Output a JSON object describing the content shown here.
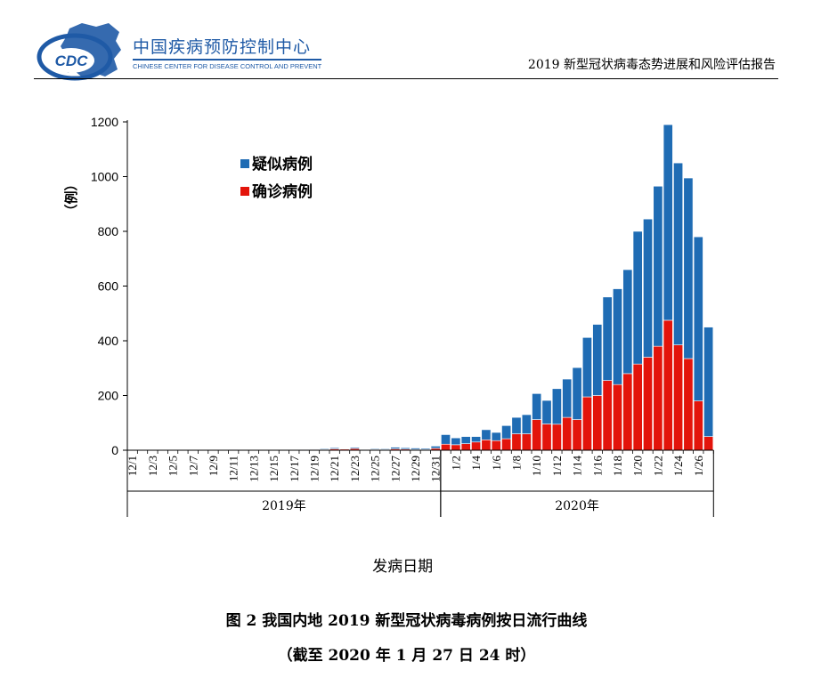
{
  "header": {
    "logo_text": "CDC",
    "org_name_cn": "中国疾病预防控制中心",
    "org_name_en": "CHINESE CENTER FOR DISEASE CONTROL AND PREVENTION",
    "report_title": "2019 新型冠状病毒态势进展和风险评估报告",
    "brand_color": "#1f5aa6"
  },
  "chart_data": {
    "type": "bar",
    "stacked": true,
    "ylabel": "（例）",
    "xlabel": "发病日期",
    "ylim": [
      0,
      1200
    ],
    "yticks": [
      0,
      200,
      400,
      600,
      800,
      1000,
      1200
    ],
    "grid": false,
    "legend_position": "top-left",
    "categories": [
      "12/1",
      "12/2",
      "12/3",
      "12/4",
      "12/5",
      "12/6",
      "12/7",
      "12/8",
      "12/9",
      "12/10",
      "12/11",
      "12/12",
      "12/13",
      "12/14",
      "12/15",
      "12/16",
      "12/17",
      "12/18",
      "12/19",
      "12/20",
      "12/21",
      "12/22",
      "12/23",
      "12/24",
      "12/25",
      "12/26",
      "12/27",
      "12/28",
      "12/29",
      "12/30",
      "12/31",
      "1/1",
      "1/2",
      "1/3",
      "1/4",
      "1/5",
      "1/6",
      "1/7",
      "1/8",
      "1/9",
      "1/10",
      "1/11",
      "1/12",
      "1/13",
      "1/14",
      "1/15",
      "1/16",
      "1/17",
      "1/18",
      "1/19",
      "1/20",
      "1/21",
      "1/22",
      "1/23",
      "1/24",
      "1/25",
      "1/26",
      "1/27"
    ],
    "tick_labels": [
      "12/1",
      "12/3",
      "12/5",
      "12/7",
      "12/9",
      "12/11",
      "12/13",
      "12/15",
      "12/17",
      "12/19",
      "12/21",
      "12/23",
      "12/25",
      "12/27",
      "12/29",
      "12/31",
      "1/2",
      "1/4",
      "1/6",
      "1/8",
      "1/10",
      "1/12",
      "1/14",
      "1/16",
      "1/18",
      "1/20",
      "1/22",
      "1/24",
      "1/26"
    ],
    "year_groups": [
      {
        "label": "2019年",
        "from": "12/1",
        "to": "12/31"
      },
      {
        "label": "2020年",
        "from": "1/1",
        "to": "1/27"
      }
    ],
    "series": [
      {
        "name": "确诊病例",
        "color": "#e3140b",
        "values": [
          1,
          0,
          0,
          0,
          0,
          0,
          1,
          0,
          0,
          1,
          1,
          0,
          1,
          0,
          0,
          1,
          1,
          1,
          3,
          3,
          5,
          4,
          6,
          2,
          3,
          2,
          5,
          4,
          3,
          3,
          7,
          22,
          20,
          24,
          30,
          38,
          35,
          42,
          60,
          60,
          112,
          96,
          95,
          120,
          112,
          195,
          200,
          255,
          240,
          280,
          315,
          340,
          380,
          475,
          385,
          335,
          180,
          50
        ]
      },
      {
        "name": "疑似病例",
        "color": "#1f6cb4",
        "values": [
          0,
          0,
          0,
          0,
          0,
          0,
          0,
          0,
          0,
          0,
          1,
          0,
          0,
          0,
          0,
          0,
          0,
          1,
          2,
          3,
          4,
          2,
          4,
          2,
          3,
          3,
          6,
          5,
          5,
          4,
          8,
          35,
          25,
          26,
          20,
          37,
          30,
          48,
          60,
          70,
          95,
          86,
          130,
          140,
          190,
          217,
          260,
          305,
          350,
          380,
          485,
          505,
          585,
          715,
          665,
          660,
          600,
          400
        ]
      }
    ]
  },
  "captions": {
    "figure_title": "图 2  我国内地 2019 新型冠状病毒病例按日流行曲线",
    "figure_note": "（截至 2020 年 1 月 27 日 24 时）"
  }
}
